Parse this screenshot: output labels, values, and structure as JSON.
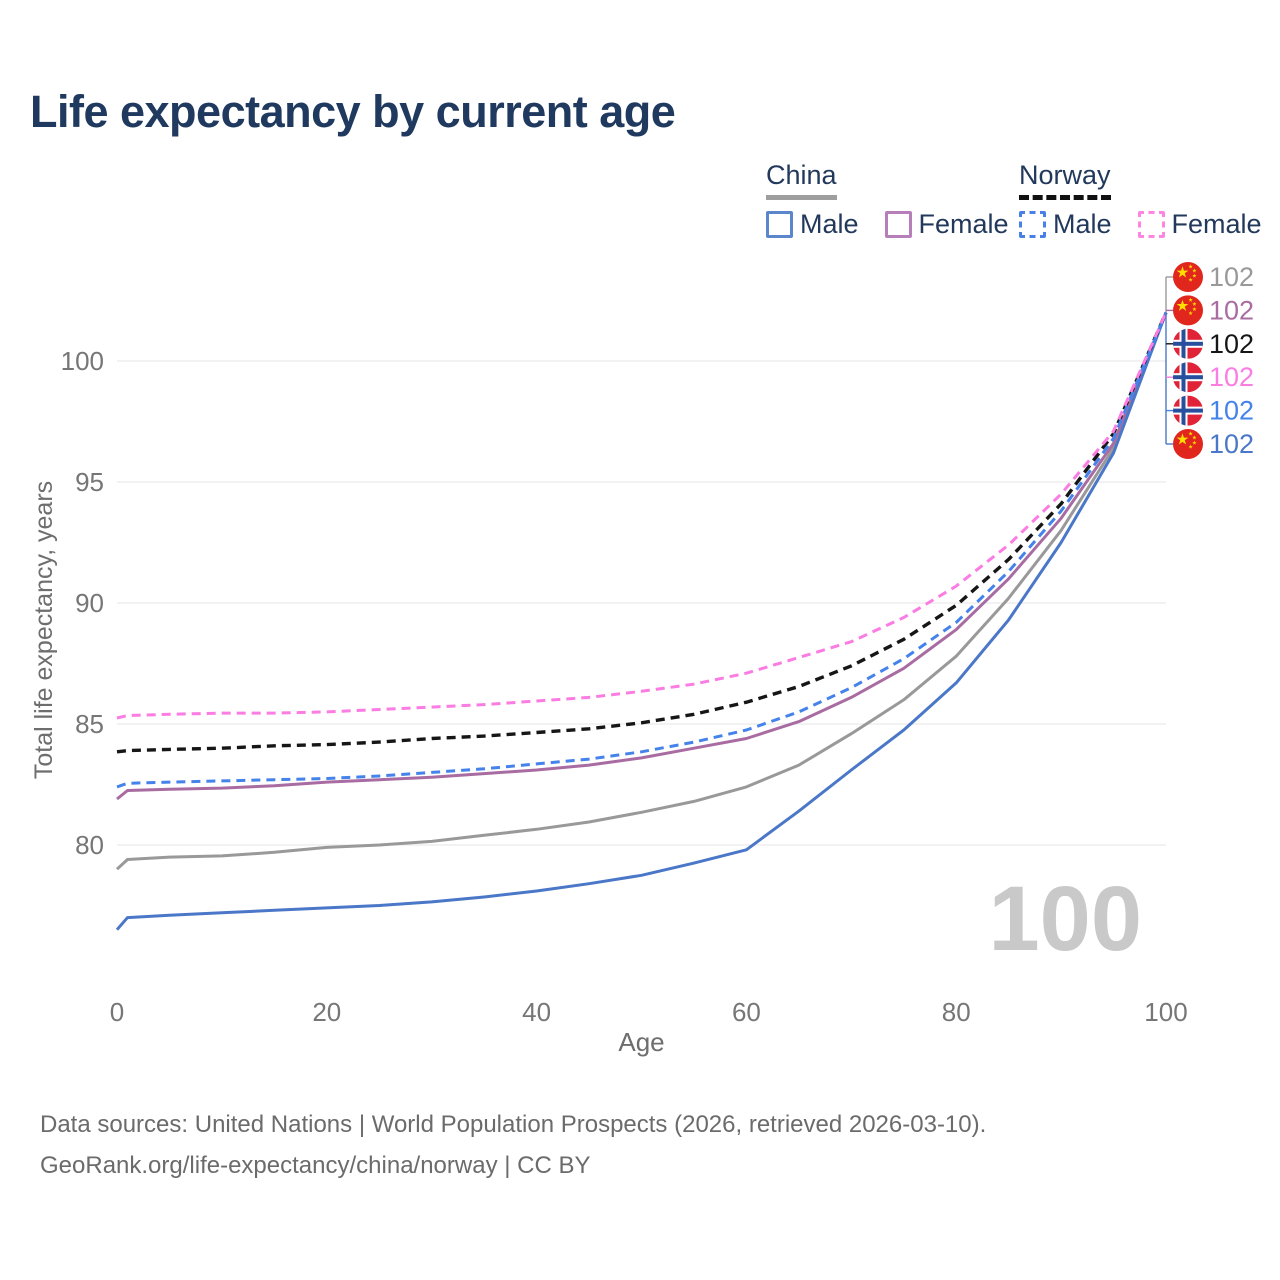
{
  "title": "Life expectancy by current age",
  "legend": {
    "groups": [
      {
        "label": "China",
        "underline_style": "solid",
        "underline_color": "#9e9e9e",
        "items": [
          {
            "label": "Male",
            "color": "#5b86cc",
            "style": "solid"
          },
          {
            "label": "Female",
            "color": "#b77fba",
            "style": "solid"
          }
        ]
      },
      {
        "label": "Norway",
        "underline_style": "dashed",
        "underline_color": "#111111",
        "items": [
          {
            "label": "Male",
            "color": "#4a7fe8",
            "style": "dashed"
          },
          {
            "label": "Female",
            "color": "#ff85e2",
            "style": "dashed"
          }
        ]
      }
    ]
  },
  "chart_data": {
    "type": "line",
    "xlabel": "Age",
    "ylabel": "Total life expectancy, years",
    "xlim": [
      0,
      100
    ],
    "ylim": [
      76,
      103
    ],
    "xticks": [
      0,
      20,
      40,
      60,
      80,
      100
    ],
    "yticks": [
      80,
      85,
      90,
      95,
      100
    ],
    "grid": "horizontal",
    "legend_position": "top-right",
    "ages": [
      0,
      1,
      5,
      10,
      15,
      20,
      25,
      30,
      35,
      40,
      45,
      50,
      55,
      60,
      65,
      70,
      75,
      80,
      85,
      90,
      95,
      100
    ],
    "series": [
      {
        "id": "china-total",
        "name": "China",
        "country": "china",
        "color": "#999999",
        "dash": "solid",
        "values": [
          79.0,
          79.4,
          79.5,
          79.55,
          79.7,
          79.9,
          80.0,
          80.15,
          80.4,
          80.65,
          80.95,
          81.35,
          81.8,
          82.4,
          83.3,
          84.6,
          86.0,
          87.8,
          90.2,
          93.0,
          96.4,
          102
        ]
      },
      {
        "id": "china-female",
        "name": "China Female",
        "country": "china",
        "color": "#a86ca2",
        "dash": "solid",
        "values": [
          81.9,
          82.25,
          82.3,
          82.35,
          82.45,
          82.6,
          82.7,
          82.8,
          82.95,
          83.1,
          83.3,
          83.6,
          84.0,
          84.4,
          85.1,
          86.1,
          87.3,
          88.9,
          91.0,
          93.5,
          96.6,
          102
        ]
      },
      {
        "id": "china-male",
        "name": "China Male",
        "country": "china",
        "color": "#4a77c8",
        "dash": "solid",
        "values": [
          76.5,
          77.0,
          77.1,
          77.2,
          77.3,
          77.4,
          77.5,
          77.65,
          77.85,
          78.1,
          78.4,
          78.75,
          79.25,
          79.8,
          81.4,
          83.1,
          84.75,
          86.7,
          89.3,
          92.5,
          96.2,
          102
        ]
      },
      {
        "id": "norway-total",
        "name": "Norway",
        "country": "norway",
        "color": "#161616",
        "dash": "dashed",
        "values": [
          83.85,
          83.9,
          83.95,
          84.0,
          84.1,
          84.15,
          84.25,
          84.4,
          84.5,
          84.65,
          84.8,
          85.05,
          85.4,
          85.9,
          86.55,
          87.4,
          88.5,
          89.9,
          91.8,
          94.1,
          97.0,
          102
        ]
      },
      {
        "id": "norway-male",
        "name": "Norway Male",
        "country": "norway",
        "color": "#4583ea",
        "dash": "dashed",
        "values": [
          82.4,
          82.55,
          82.6,
          82.65,
          82.7,
          82.75,
          82.85,
          83.0,
          83.15,
          83.35,
          83.55,
          83.85,
          84.25,
          84.75,
          85.5,
          86.5,
          87.7,
          89.2,
          91.3,
          93.8,
          96.8,
          102
        ]
      },
      {
        "id": "norway-female",
        "name": "Norway Female",
        "country": "norway",
        "color": "#fb7ce2",
        "dash": "dashed",
        "values": [
          85.25,
          85.35,
          85.4,
          85.45,
          85.45,
          85.5,
          85.6,
          85.7,
          85.8,
          85.95,
          86.1,
          86.35,
          86.65,
          87.1,
          87.75,
          88.4,
          89.4,
          90.7,
          92.4,
          94.5,
          97.1,
          102
        ]
      }
    ],
    "end_labels": [
      {
        "flag": "china",
        "series": "china-total",
        "color": "#999999",
        "value": "102"
      },
      {
        "flag": "china",
        "series": "china-female",
        "color": "#a86ca2",
        "value": "102"
      },
      {
        "flag": "norway",
        "series": "norway-total",
        "color": "#161616",
        "value": "102"
      },
      {
        "flag": "norway",
        "series": "norway-female",
        "color": "#fb7ce2",
        "value": "102"
      },
      {
        "flag": "norway",
        "series": "norway-male",
        "color": "#4583ea",
        "value": "102"
      },
      {
        "flag": "china",
        "series": "china-male",
        "color": "#4a77c8",
        "value": "102"
      }
    ],
    "watermark": "100"
  },
  "footer": {
    "line1": "Data sources: United Nations | World Population Prospects (2026, retrieved 2026-03-10).",
    "line2": "GeoRank.org/life-expectancy/china/norway | CC BY"
  }
}
